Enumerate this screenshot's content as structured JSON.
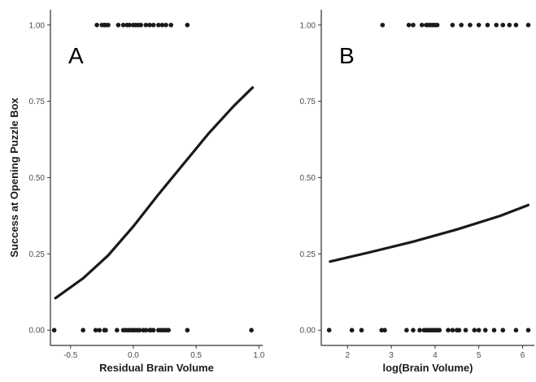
{
  "chart_data": {
    "type": "scatter",
    "ylabel": "Success at Opening Puzzle Box",
    "ylim": [
      -0.05,
      1.05
    ],
    "yticks": [
      0.0,
      0.25,
      0.5,
      0.75,
      1.0
    ],
    "yticklabels": [
      "0.00",
      "0.25",
      "0.50",
      "0.75",
      "1.00"
    ],
    "grid": false,
    "panels": [
      {
        "panel_label": "A",
        "xlabel": "Residual Brain Volume",
        "xlim": [
          -0.66,
          1.03
        ],
        "xticks": [
          -0.5,
          0.0,
          0.5,
          1.0
        ],
        "xticklabels": [
          "-0.5",
          "0.0",
          "0.5",
          "1.0"
        ],
        "points_y1": [
          -0.29,
          -0.25,
          -0.23,
          -0.22,
          -0.2,
          -0.12,
          -0.08,
          -0.05,
          -0.03,
          0.0,
          0.02,
          0.04,
          0.06,
          0.1,
          0.13,
          0.16,
          0.2,
          0.23,
          0.26,
          0.3,
          0.43
        ],
        "points_y0": [
          -0.63,
          -0.4,
          -0.3,
          -0.27,
          -0.23,
          -0.22,
          -0.13,
          -0.08,
          -0.06,
          -0.04,
          -0.02,
          0.0,
          0.01,
          0.03,
          0.05,
          0.08,
          0.1,
          0.13,
          0.14,
          0.16,
          0.2,
          0.22,
          0.24,
          0.26,
          0.28,
          0.43,
          0.94
        ],
        "fit_curve": {
          "x": [
            -0.62,
            -0.4,
            -0.2,
            0.0,
            0.2,
            0.4,
            0.6,
            0.8,
            0.95
          ],
          "y": [
            0.105,
            0.17,
            0.245,
            0.34,
            0.445,
            0.545,
            0.645,
            0.735,
            0.795
          ]
        }
      },
      {
        "panel_label": "B",
        "xlabel": "log(Brain Volume)",
        "xlim": [
          1.4,
          6.27
        ],
        "xticks": [
          2,
          3,
          4,
          5,
          6
        ],
        "xticklabels": [
          "2",
          "3",
          "4",
          "5",
          "6"
        ],
        "points_y1": [
          2.8,
          3.4,
          3.5,
          3.7,
          3.8,
          3.85,
          3.9,
          3.95,
          4.0,
          4.05,
          4.4,
          4.6,
          4.8,
          5.0,
          5.2,
          5.4,
          5.55,
          5.7,
          5.85,
          6.13
        ],
        "points_y0": [
          1.58,
          2.1,
          2.32,
          2.78,
          2.85,
          3.35,
          3.5,
          3.65,
          3.75,
          3.8,
          3.85,
          3.9,
          3.95,
          4.0,
          4.05,
          4.1,
          4.3,
          4.4,
          4.5,
          4.55,
          4.7,
          4.9,
          5.0,
          5.15,
          5.35,
          5.55,
          5.85,
          6.13
        ],
        "fit_curve": {
          "x": [
            1.6,
            2.5,
            3.5,
            4.5,
            5.5,
            6.13
          ],
          "y": [
            0.225,
            0.255,
            0.29,
            0.33,
            0.375,
            0.41
          ]
        }
      }
    ]
  }
}
